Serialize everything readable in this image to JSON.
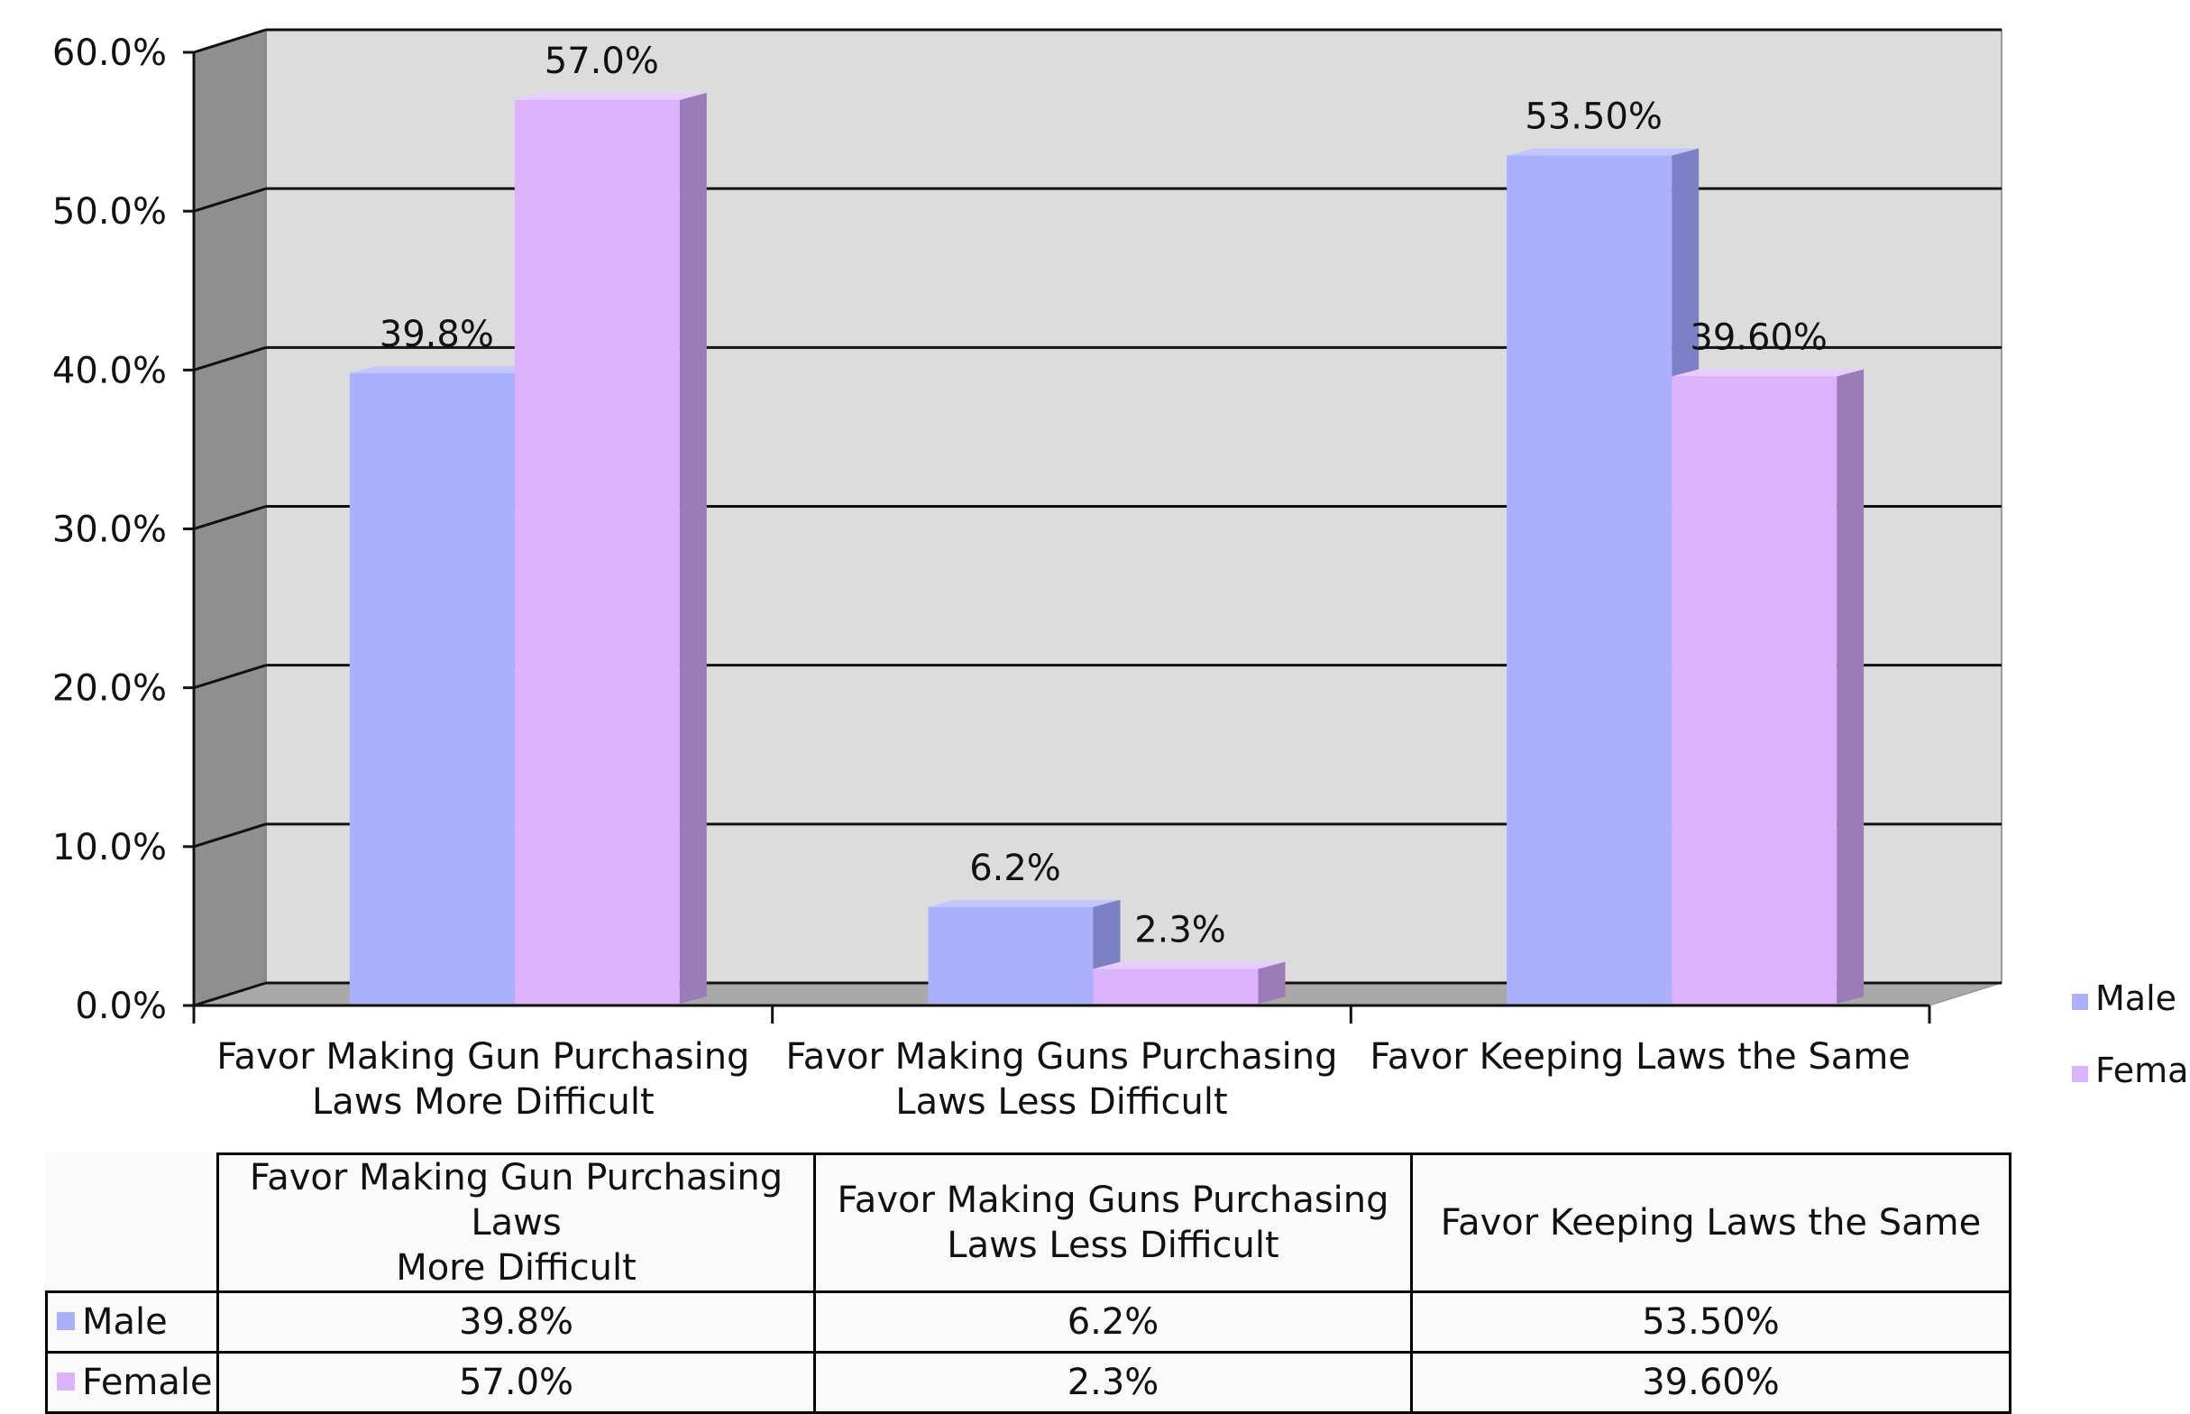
{
  "chart_data": {
    "type": "bar",
    "title": "",
    "xlabel": "",
    "ylabel": "",
    "categories": [
      "Favor Making Gun Purchasing Laws More Difficult",
      "Favor Making Guns Purchasing Laws Less Difficult",
      "Favor Keeping Laws the Same"
    ],
    "category_axis_labels": [
      [
        "Favor Making Gun Purchasing",
        "Laws More Difficult"
      ],
      [
        "Favor Making Guns Purchasing",
        "Laws Less Difficult"
      ],
      [
        "Favor Keeping Laws the Same"
      ]
    ],
    "table_header_labels": [
      [
        "Favor Making Gun Purchasing Laws",
        "More Difficult"
      ],
      [
        "Favor Making Guns Purchasing",
        "Laws Less Difficult"
      ],
      [
        "Favor Keeping Laws the Same"
      ]
    ],
    "series": [
      {
        "name": "Male",
        "color": "#aab0fc",
        "side_color": "#7c80c4",
        "top_color": "#c2c6ff",
        "values": [
          39.8,
          6.2,
          53.5
        ],
        "labels": [
          "39.8%",
          "6.2%",
          "53.50%"
        ]
      },
      {
        "name": "Female",
        "color": "#dcb2fc",
        "side_color": "#9b7cb8",
        "top_color": "#e9ccff",
        "values": [
          57.0,
          2.3,
          39.6
        ],
        "labels": [
          "57.0%",
          "2.3%",
          "39.60%"
        ]
      }
    ],
    "ylim": [
      0,
      60
    ],
    "yticks": [
      {
        "value": 0,
        "label": "0.0%"
      },
      {
        "value": 10,
        "label": "10.0%"
      },
      {
        "value": 20,
        "label": "20.0%"
      },
      {
        "value": 30,
        "label": "30.0%"
      },
      {
        "value": 40,
        "label": "40.0%"
      },
      {
        "value": 50,
        "label": "50.0%"
      },
      {
        "value": 60,
        "label": "60.0%"
      }
    ],
    "grid": true,
    "legend_position": "right",
    "data_table": true,
    "style": "3d-clustered-column"
  }
}
